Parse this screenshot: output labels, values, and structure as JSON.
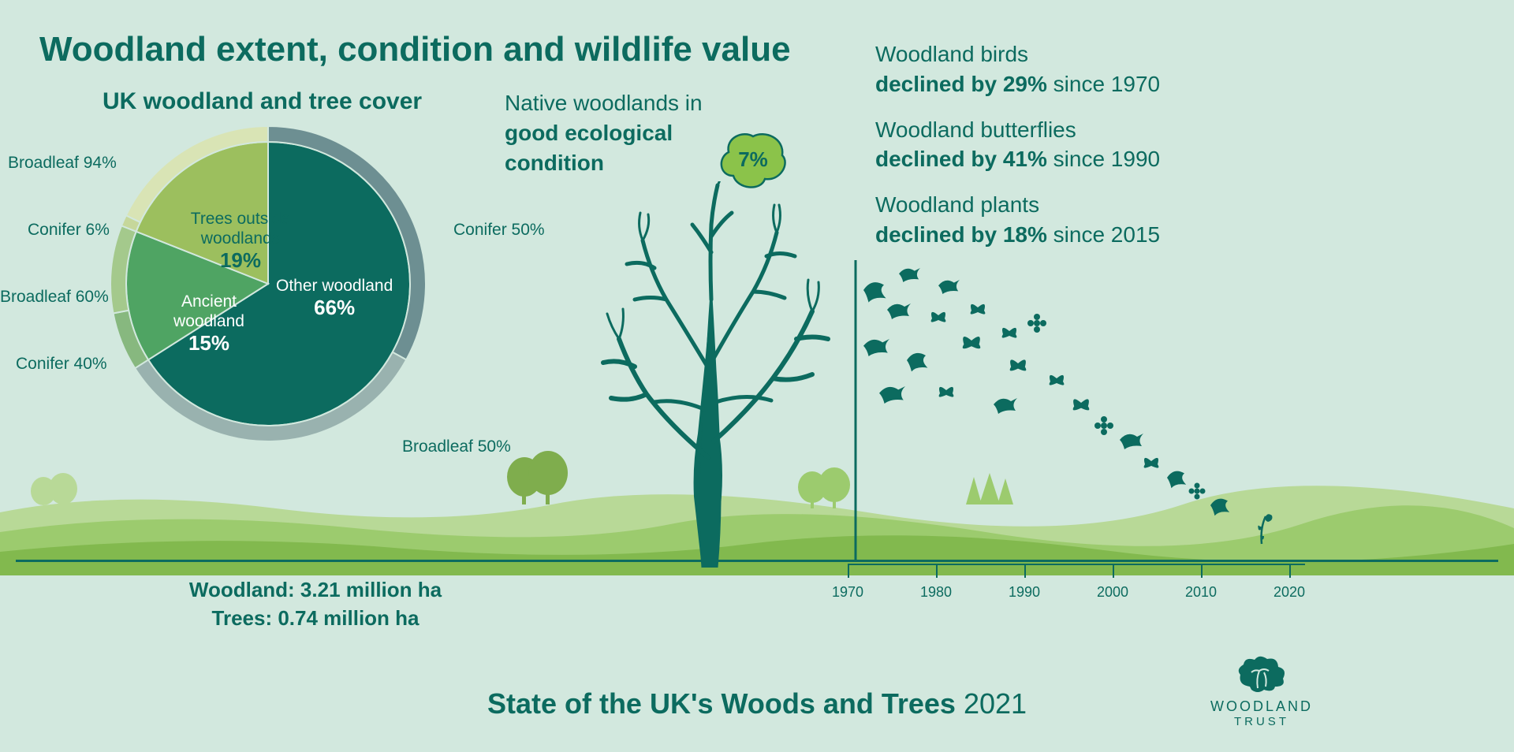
{
  "title": "Woodland extent, condition and wildlife value",
  "pie": {
    "title": "UK woodland and tree cover",
    "radius_outer": 200,
    "radius_inner": 180,
    "slices": [
      {
        "label": "Other woodland",
        "value": 66,
        "value_str": "66%",
        "color": "#0c6b5f",
        "ring": [
          {
            "label": "Conifer 50%",
            "frac": 0.5,
            "color": "#6d8f92"
          },
          {
            "label": "Broadleaf 50%",
            "frac": 0.5,
            "color": "#99b2af"
          }
        ]
      },
      {
        "label": "Ancient\nwoodland",
        "value": 15,
        "value_str": "15%",
        "color": "#4fa463",
        "ring": [
          {
            "label": "Conifer 40%",
            "frac": 0.4,
            "color": "#87b87f"
          },
          {
            "label": "Broadleaf 60%",
            "frac": 0.6,
            "color": "#a4c98c"
          }
        ]
      },
      {
        "label": "Trees outside\nwoodlands",
        "value": 19,
        "value_str": "19%",
        "color": "#9cbf5e",
        "ring": [
          {
            "label": "Conifer 6%",
            "frac": 0.06,
            "color": "#c6d79b"
          },
          {
            "label": "Broadleaf 94%",
            "frac": 0.94,
            "color": "#d9e4b5"
          }
        ]
      }
    ],
    "outer_labels": {
      "conifer50": "Conifer 50%",
      "broadleaf50": "Broadleaf 50%",
      "conifer40": "Conifer 40%",
      "broadleaf60": "Broadleaf 60%",
      "conifer6": "Conifer 6%",
      "broadleaf94": "Broadleaf 94%"
    }
  },
  "stats": {
    "woodland": "Woodland: 3.21 million ha",
    "trees": "Trees: 0.74 million ha"
  },
  "native": {
    "line1": "Native woodlands in",
    "line2": "good ecological",
    "line3": "condition",
    "bubble_value": "7%",
    "bubble_color": "#8bc34a",
    "bubble_stroke": "#0c6b5f"
  },
  "declines": [
    {
      "category": "Woodland birds",
      "statement": "declined by 29%",
      "since": "since 1970"
    },
    {
      "category": "Woodland butterflies",
      "statement": "declined by 41%",
      "since": "since 1990"
    },
    {
      "category": "Woodland plants",
      "statement": "declined by 18%",
      "since": "since 2015"
    }
  ],
  "timeline": {
    "ticks": [
      "1970",
      "1980",
      "1990",
      "2000",
      "2010",
      "2020"
    ],
    "tick_count": 6
  },
  "footer": {
    "bold": "State of the UK's Woods and Trees",
    "year": "2021"
  },
  "logo": {
    "line1": "WOODLAND",
    "line2": "TRUST"
  },
  "colors": {
    "background": "#d2e8de",
    "primary": "#0c6b5f",
    "ground_light": "#b8d997",
    "ground_mid": "#9ccb6e",
    "ground_dark": "#82b94e"
  }
}
